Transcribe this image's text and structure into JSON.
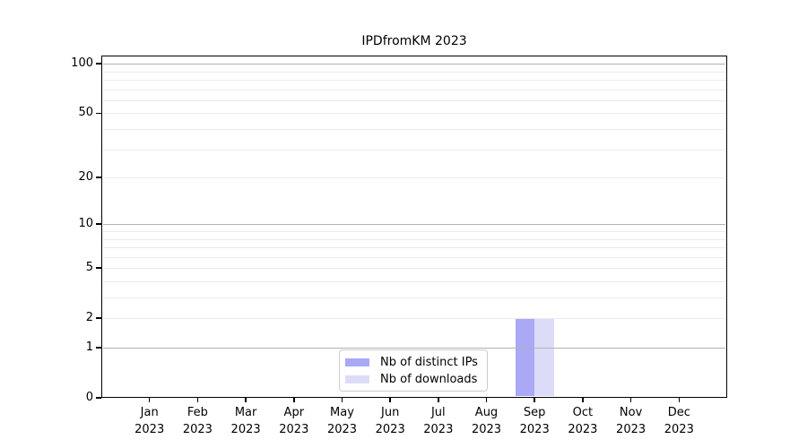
{
  "figure": {
    "background": "#ffffff"
  },
  "chart_data": {
    "type": "bar",
    "title": "IPDfromKM 2023",
    "x_tick_labels": [
      {
        "line1": "Jan",
        "line2": "2023"
      },
      {
        "line1": "Feb",
        "line2": "2023"
      },
      {
        "line1": "Mar",
        "line2": "2023"
      },
      {
        "line1": "Apr",
        "line2": "2023"
      },
      {
        "line1": "May",
        "line2": "2023"
      },
      {
        "line1": "Jun",
        "line2": "2023"
      },
      {
        "line1": "Jul",
        "line2": "2023"
      },
      {
        "line1": "Aug",
        "line2": "2023"
      },
      {
        "line1": "Sep",
        "line2": "2023"
      },
      {
        "line1": "Oct",
        "line2": "2023"
      },
      {
        "line1": "Nov",
        "line2": "2023"
      },
      {
        "line1": "Dec",
        "line2": "2023"
      }
    ],
    "series": [
      {
        "name": "Nb of distinct IPs",
        "color": "#a9a9f5",
        "values": [
          0,
          0,
          0,
          0,
          0,
          0,
          0,
          0,
          2,
          0,
          0,
          0
        ]
      },
      {
        "name": "Nb of downloads",
        "color": "#dcdcf9",
        "values": [
          0,
          0,
          0,
          0,
          0,
          0,
          0,
          0,
          2,
          0,
          0,
          0
        ]
      }
    ],
    "y_axis": {
      "scale": "log1p",
      "tick_values": [
        0,
        1,
        2,
        5,
        10,
        20,
        50,
        100
      ],
      "major_gridlines": [
        1,
        10,
        100
      ],
      "minor_gridlines": [
        2,
        3,
        4,
        5,
        6,
        7,
        8,
        9,
        20,
        30,
        40,
        50,
        60,
        70,
        80,
        90
      ],
      "range": [
        0,
        112
      ]
    },
    "legend": {
      "position": "lower center"
    },
    "grid": true
  },
  "colors": {
    "major_grid": "#b2b2b2",
    "minor_grid": "#ebebeb",
    "spine": "#000000",
    "text": "#000000",
    "legend_border": "#cccccc",
    "background": "#ffffff"
  }
}
